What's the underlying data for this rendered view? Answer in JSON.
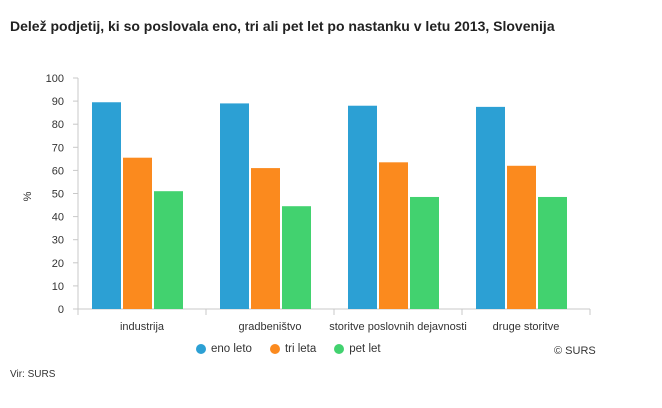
{
  "title": "Delež podjetij, ki so poslovala eno, tri ali pet let po nastanku v letu 2013, Slovenija",
  "source": "Vir: SURS",
  "credit": "© SURS",
  "chart_data": {
    "type": "bar",
    "categories": [
      "industrija",
      "gradbeništvo",
      "storitve poslovnih dejavnosti",
      "druge storitve"
    ],
    "series": [
      {
        "name": "eno leto",
        "color": "#2ca0d4",
        "values": [
          89.5,
          89,
          88,
          87.5
        ]
      },
      {
        "name": "tri leta",
        "color": "#fb8a1e",
        "values": [
          65.5,
          61,
          63.5,
          62
        ]
      },
      {
        "name": "pet let",
        "color": "#42d26f",
        "values": [
          51,
          44.5,
          48.5,
          48.5
        ]
      }
    ],
    "ylabel": "%",
    "xlabel": "",
    "ylim": [
      0,
      100
    ],
    "yticks": [
      0,
      10,
      20,
      30,
      40,
      50,
      60,
      70,
      80,
      90,
      100
    ],
    "grid": false,
    "legend": "bottom"
  }
}
